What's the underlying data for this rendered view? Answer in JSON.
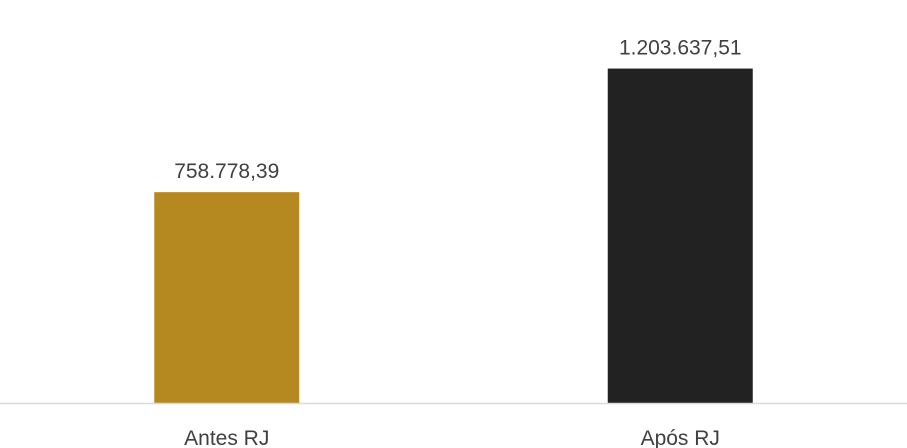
{
  "chart_data": {
    "type": "bar",
    "categories": [
      "Antes RJ",
      "Após RJ"
    ],
    "values": [
      758778.39,
      1203637.51
    ],
    "data_labels": [
      "758.778,39",
      "1.203.637,51"
    ],
    "bar_colors": [
      "#b5891f",
      "#222222"
    ],
    "title": "",
    "xlabel": "",
    "ylabel": "",
    "ylim": [
      0,
      1400000
    ],
    "grid": false,
    "legend": "none",
    "axis_line_color": "#d9d9d9",
    "label_color": "#404040"
  }
}
